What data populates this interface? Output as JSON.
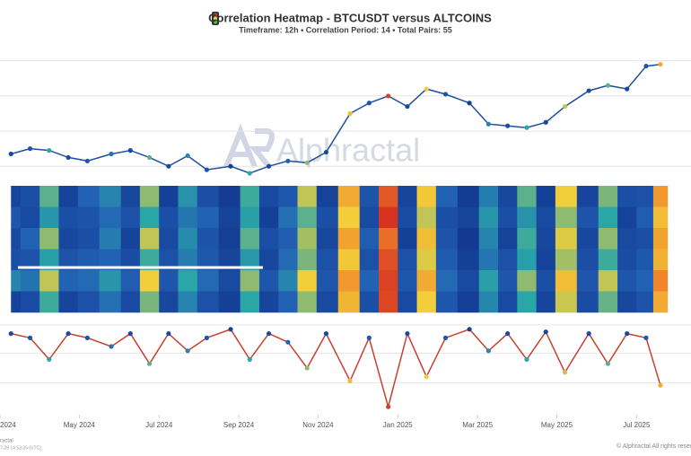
{
  "chart_data": [
    {
      "type": "line",
      "title": "Correlation Heatmap - BTCUSDT versus ALTCOINS",
      "subtitle": "Timeframe: 12h • Correlation Period: 14  • Total Pairs: 55",
      "watermark": "Alphractal",
      "x": [
        2024.19,
        2024.23,
        2024.27,
        2024.31,
        2024.35,
        2024.4,
        2024.44,
        2024.48,
        2024.52,
        2024.56,
        2024.6,
        2024.65,
        2024.69,
        2024.73,
        2024.77,
        2024.81,
        2024.85,
        2024.9,
        2024.94,
        2024.98,
        2025.02,
        2025.06,
        2025.1,
        2025.15,
        2025.19,
        2025.23,
        2025.27,
        2025.31,
        2025.35,
        2025.4,
        2025.44,
        2025.48,
        2025.52,
        2025.55
      ],
      "values": [
        67000,
        70000,
        69000,
        65000,
        63000,
        67000,
        69000,
        65000,
        60000,
        66000,
        58000,
        60000,
        56000,
        60000,
        63000,
        62000,
        68000,
        90000,
        96000,
        100000,
        94000,
        104000,
        101000,
        96000,
        84000,
        83000,
        82000,
        85000,
        94000,
        103000,
        106000,
        104000,
        117000,
        118000
      ],
      "line_color": "#1f4e9c",
      "xlim": [
        2024.167,
        2025.614
      ],
      "ylim": [
        55000,
        125000
      ],
      "yticks": [
        60000,
        80000,
        100000,
        120000
      ],
      "grid": true
    },
    {
      "type": "heatmap",
      "x": [
        2024.19,
        2024.23,
        2024.27,
        2024.31,
        2024.35,
        2024.4,
        2024.44,
        2024.48,
        2024.52,
        2024.56,
        2024.6,
        2024.65,
        2024.69,
        2024.73,
        2024.77,
        2024.81,
        2024.85,
        2024.9,
        2024.94,
        2024.98,
        2025.02,
        2025.06,
        2025.1,
        2025.15,
        2025.19,
        2025.23,
        2025.27,
        2025.31,
        2025.35,
        2025.4,
        2025.44,
        2025.48,
        2025.52,
        2025.55
      ],
      "z": [
        [
          0.92,
          0.88,
          0.55,
          0.93,
          0.8,
          0.7,
          0.91,
          0.5,
          0.94,
          0.66,
          0.88,
          0.96,
          0.58,
          0.9,
          0.84,
          0.45,
          0.93,
          0.3,
          0.86,
          0.1,
          0.92,
          0.38,
          0.8,
          0.96,
          0.72,
          0.91,
          0.55,
          0.94,
          0.4,
          0.92,
          0.52,
          0.88,
          0.87,
          0.25
        ],
        [
          0.85,
          0.9,
          0.65,
          0.88,
          0.86,
          0.78,
          0.87,
          0.6,
          0.88,
          0.74,
          0.8,
          0.93,
          0.62,
          0.94,
          0.76,
          0.55,
          0.88,
          0.4,
          0.9,
          0.02,
          0.89,
          0.45,
          0.88,
          0.92,
          0.65,
          0.88,
          0.66,
          0.9,
          0.5,
          0.86,
          0.6,
          0.93,
          0.82,
          0.35
        ],
        [
          0.9,
          0.8,
          0.5,
          0.91,
          0.88,
          0.72,
          0.93,
          0.45,
          0.9,
          0.68,
          0.86,
          0.95,
          0.55,
          0.88,
          0.82,
          0.48,
          0.91,
          0.28,
          0.82,
          0.15,
          0.94,
          0.35,
          0.86,
          0.97,
          0.7,
          0.93,
          0.58,
          0.91,
          0.42,
          0.91,
          0.5,
          0.9,
          0.88,
          0.28
        ],
        [
          0.88,
          0.86,
          0.62,
          0.86,
          0.83,
          0.8,
          0.89,
          0.58,
          0.87,
          0.72,
          0.84,
          0.92,
          0.64,
          0.91,
          0.78,
          0.52,
          0.87,
          0.38,
          0.87,
          0.08,
          0.87,
          0.42,
          0.83,
          0.94,
          0.74,
          0.87,
          0.62,
          0.93,
          0.48,
          0.88,
          0.58,
          0.89,
          0.84,
          0.32
        ],
        [
          0.7,
          0.75,
          0.45,
          0.8,
          0.78,
          0.65,
          0.82,
          0.4,
          0.85,
          0.6,
          0.78,
          0.9,
          0.5,
          0.85,
          0.7,
          0.4,
          0.85,
          0.25,
          0.8,
          0.05,
          0.85,
          0.3,
          0.78,
          0.9,
          0.62,
          0.85,
          0.5,
          0.88,
          0.35,
          0.85,
          0.45,
          0.85,
          0.8,
          0.2
        ],
        [
          0.93,
          0.89,
          0.58,
          0.92,
          0.87,
          0.76,
          0.9,
          0.52,
          0.91,
          0.7,
          0.87,
          0.94,
          0.6,
          0.92,
          0.81,
          0.5,
          0.9,
          0.33,
          0.88,
          0.06,
          0.9,
          0.4,
          0.85,
          0.95,
          0.69,
          0.9,
          0.6,
          0.92,
          0.44,
          0.89,
          0.54,
          0.91,
          0.86,
          0.3
        ]
      ],
      "colorscale": [
        "#d42a20",
        "#f0862a",
        "#f2cf3a",
        "#2aa6a6",
        "#2262b5",
        "#10328c"
      ],
      "xlim": [
        2024.167,
        2025.614
      ]
    },
    {
      "type": "line",
      "x": [
        2024.19,
        2024.23,
        2024.27,
        2024.31,
        2024.35,
        2024.4,
        2024.44,
        2024.48,
        2024.52,
        2024.56,
        2024.6,
        2024.65,
        2024.69,
        2024.73,
        2024.77,
        2024.81,
        2024.85,
        2024.9,
        2024.94,
        2024.98,
        2025.02,
        2025.06,
        2025.1,
        2025.15,
        2025.19,
        2025.23,
        2025.27,
        2025.31,
        2025.35,
        2025.4,
        2025.44,
        2025.48,
        2025.52,
        2025.55
      ],
      "values": [
        0.9,
        0.85,
        0.6,
        0.9,
        0.85,
        0.75,
        0.9,
        0.55,
        0.9,
        0.7,
        0.85,
        0.95,
        0.6,
        0.9,
        0.8,
        0.5,
        0.9,
        0.35,
        0.85,
        0.05,
        0.9,
        0.4,
        0.85,
        0.95,
        0.7,
        0.9,
        0.6,
        0.92,
        0.45,
        0.9,
        0.55,
        0.9,
        0.85,
        0.3
      ],
      "line_color": "#c8402f",
      "xlim": [
        2024.167,
        2025.614
      ],
      "ylim": [
        0,
        1
      ],
      "yticks": [
        0.33,
        0.67,
        1
      ],
      "grid": true,
      "xticks": [
        {
          "value": 2024.167,
          "label": "2024"
        },
        {
          "value": 2024.333,
          "label": "May 2024"
        },
        {
          "value": 2024.5,
          "label": "Jul 2024"
        },
        {
          "value": 2024.667,
          "label": "Sep 2024"
        },
        {
          "value": 2024.833,
          "label": "Nov 2024"
        },
        {
          "value": 2025.0,
          "label": "Jan 2025"
        },
        {
          "value": 2025.167,
          "label": "Mar 2025"
        },
        {
          "value": 2025.333,
          "label": "May 2025"
        },
        {
          "value": 2025.5,
          "label": "Jul 2025"
        }
      ]
    }
  ],
  "footer": {
    "left": "ractal",
    "left_sub": "7-28 14:53:35 (UTC)",
    "right": "© Alphractal All rights reserved"
  }
}
